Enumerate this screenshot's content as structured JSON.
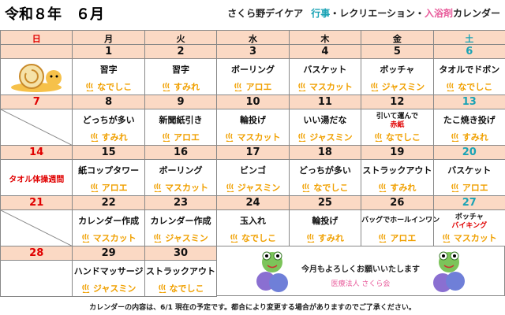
{
  "header": {
    "title": "令和８年　６月",
    "org": "さくら野デイケア",
    "subtitle": [
      "行事",
      "・レクリエーション・",
      "入浴剤",
      "カレンダー"
    ]
  },
  "weekdays": [
    "日",
    "月",
    "火",
    "水",
    "木",
    "金",
    "土"
  ],
  "weeks": [
    [
      null,
      {
        "date": 1,
        "events": [
          "習字"
        ],
        "bath": "なでしこ"
      },
      {
        "date": 2,
        "events": [
          "習字"
        ],
        "bath": "すみれ"
      },
      {
        "date": 3,
        "events": [
          "ボーリング"
        ],
        "bath": "アロエ"
      },
      {
        "date": 4,
        "events": [
          "バスケット"
        ],
        "bath": "マスカット"
      },
      {
        "date": 5,
        "events": [
          "ボッチャ"
        ],
        "bath": "ジャスミン"
      },
      {
        "date": 6,
        "events": [
          "タオルでドボン"
        ],
        "bath": "なでしこ"
      }
    ],
    [
      {
        "date": 7
      },
      {
        "date": 8,
        "events": [
          "どっちが多い"
        ],
        "bath": "すみれ"
      },
      {
        "date": 9,
        "events": [
          "新聞紙引き"
        ],
        "bath": "アロエ"
      },
      {
        "date": 10,
        "events": [
          "輪投げ"
        ],
        "bath": "マスカット"
      },
      {
        "date": 11,
        "events": [
          "いい湯だな"
        ],
        "bath": "ジャスミン"
      },
      {
        "date": 12,
        "events": [
          "引いて運んで",
          "赤紙"
        ],
        "bath": "なでしこ"
      },
      {
        "date": 13,
        "events": [
          "たこ焼き投げ"
        ],
        "bath": "すみれ"
      }
    ],
    [
      {
        "date": 14,
        "note": "タオル体操週間"
      },
      {
        "date": 15,
        "events": [
          "紙コップタワー"
        ],
        "bath": "アロエ"
      },
      {
        "date": 16,
        "events": [
          "ボーリング"
        ],
        "bath": "マスカット"
      },
      {
        "date": 17,
        "events": [
          "ビンゴ"
        ],
        "bath": "ジャスミン"
      },
      {
        "date": 18,
        "events": [
          "どっちが多い"
        ],
        "bath": "なでしこ"
      },
      {
        "date": 19,
        "events": [
          "ストラックアウト"
        ],
        "bath": "すみれ"
      },
      {
        "date": 20,
        "events": [
          "バスケット"
        ],
        "bath": "アロエ"
      }
    ],
    [
      {
        "date": 21
      },
      {
        "date": 22,
        "events": [
          "カレンダー作成"
        ],
        "bath": "マスカット"
      },
      {
        "date": 23,
        "events": [
          "カレンダー作成"
        ],
        "bath": "ジャスミン"
      },
      {
        "date": 24,
        "events": [
          "玉入れ"
        ],
        "bath": "なでしこ"
      },
      {
        "date": 25,
        "events": [
          "輪投げ"
        ],
        "bath": "すみれ"
      },
      {
        "date": 26,
        "events": [
          "バッグでホールインワン"
        ],
        "bath": "アロエ"
      },
      {
        "date": 27,
        "events": [
          "ボッチャ",
          "バイキング"
        ],
        "bath": "マスカット"
      }
    ],
    [
      {
        "date": 28
      },
      {
        "date": 29,
        "events": [
          "ハンドマッサージ"
        ],
        "bath": "ジャスミン"
      },
      {
        "date": 30,
        "events": [
          "ストラックアウト"
        ],
        "bath": "なでしこ"
      },
      null,
      null,
      null,
      null
    ]
  ],
  "message": {
    "text": "今月もよろしくお願いいたします",
    "org": "医療法人 さくら会"
  },
  "footer": "カレンダーの内容は、6/1 現在の予定です。都合により変更する場合がありますのでご了承ください。"
}
